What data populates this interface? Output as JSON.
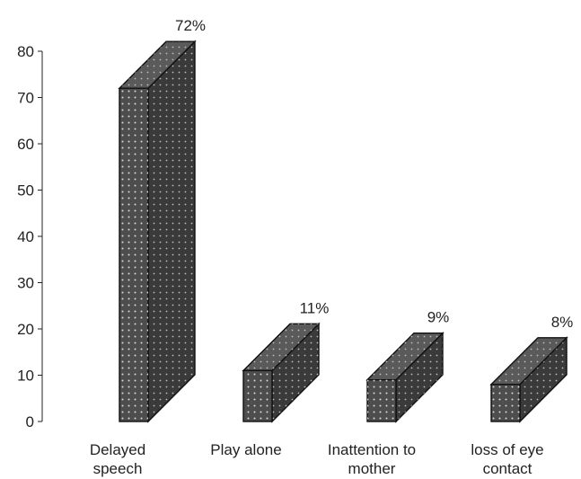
{
  "chart_data": {
    "type": "bar",
    "style": "3d-column",
    "title": "",
    "xlabel": "",
    "ylabel": "",
    "ylim": [
      0,
      80
    ],
    "yticks": [
      0,
      10,
      20,
      30,
      40,
      50,
      60,
      70,
      80
    ],
    "categories": [
      [
        "Delayed",
        "speech"
      ],
      [
        "Play alone"
      ],
      [
        "Inattention to",
        "mother"
      ],
      [
        "loss of eye",
        "contact"
      ]
    ],
    "values": [
      72,
      11,
      9,
      8
    ],
    "data_labels": [
      "72%",
      "11%",
      "9%",
      "8%"
    ],
    "grid": false,
    "legend": "none",
    "colors": {
      "front": "#4d4d4d",
      "side": "#3a3a3a",
      "top": "#5a5a5a",
      "edge": "#111111",
      "dots": "#d8d8d8"
    }
  }
}
